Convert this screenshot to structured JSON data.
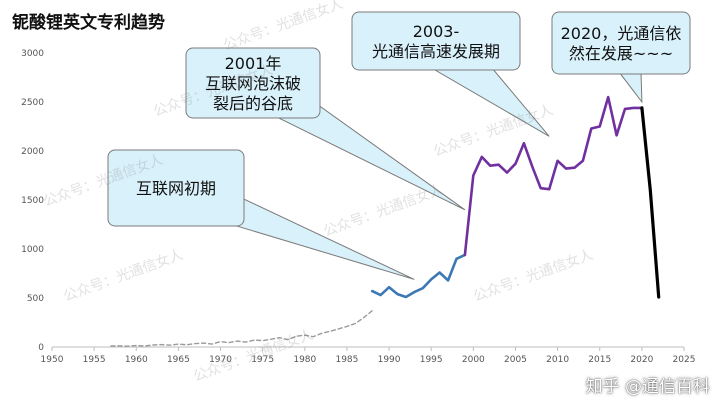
{
  "title": "铌酸锂英文专利趋势",
  "watermark": "公众号：光通信女人",
  "credit": "知乎 @通信百科",
  "chart_data": {
    "type": "line",
    "xlim": [
      1950,
      2025
    ],
    "ylim": [
      0,
      3000
    ],
    "x_ticks": [
      "1950",
      "1955",
      "1960",
      "1965",
      "1970",
      "1975",
      "1980",
      "1985",
      "1990",
      "1995",
      "2000",
      "2005",
      "2010",
      "2015",
      "2020",
      "2025"
    ],
    "y_ticks": [
      "0",
      "500",
      "1000",
      "1500",
      "2000",
      "2500",
      "3000"
    ],
    "grid": false,
    "legend": "none",
    "colors": {
      "early": "#9a9a9a",
      "internet": "#3c78b4",
      "optical": "#7030a0",
      "latest": "#000000",
      "callout_fill": "#d9f1fa",
      "callout_border": "#7a7a7a"
    },
    "series": [
      {
        "key": "early",
        "x": [
          1957,
          1958,
          1959,
          1960,
          1961,
          1962,
          1963,
          1964,
          1965,
          1966,
          1967,
          1968,
          1969,
          1970,
          1971,
          1972,
          1973,
          1974,
          1975,
          1976,
          1977,
          1978,
          1979,
          1980,
          1981,
          1982,
          1983,
          1984,
          1985,
          1986,
          1987,
          1988
        ],
        "y": [
          10,
          12,
          8,
          15,
          10,
          20,
          25,
          18,
          30,
          22,
          35,
          40,
          30,
          55,
          45,
          60,
          50,
          70,
          65,
          80,
          95,
          75,
          110,
          120,
          105,
          140,
          160,
          185,
          210,
          240,
          300,
          370
        ]
      },
      {
        "key": "internet",
        "x": [
          1988,
          1989,
          1990,
          1991,
          1992,
          1993,
          1994,
          1995,
          1996,
          1997,
          1998,
          1999
        ],
        "y": [
          570,
          530,
          610,
          540,
          510,
          560,
          600,
          690,
          760,
          680,
          900,
          940
        ]
      },
      {
        "key": "optical",
        "x": [
          1999,
          2000,
          2001,
          2002,
          2003,
          2004,
          2005,
          2006,
          2007,
          2008,
          2009,
          2010,
          2011,
          2012,
          2013,
          2014,
          2015,
          2016,
          2017,
          2018,
          2019,
          2020
        ],
        "y": [
          940,
          1750,
          1940,
          1850,
          1860,
          1780,
          1870,
          2080,
          1840,
          1620,
          1610,
          1900,
          1820,
          1830,
          1900,
          2230,
          2250,
          2550,
          2160,
          2430,
          2440,
          2440
        ]
      },
      {
        "key": "latest",
        "x": [
          2020,
          2021,
          2022
        ],
        "y": [
          2440,
          1600,
          510
        ]
      }
    ],
    "annotations": [
      {
        "key": "early-internet",
        "text": [
          "互联网初期"
        ],
        "target": [
          1993,
          690
        ]
      },
      {
        "key": "post-bubble",
        "text": [
          "2001年",
          "互联网泡沫破",
          "裂后的谷底"
        ],
        "target": [
          1999,
          1400
        ]
      },
      {
        "key": "optical-boom",
        "text": [
          "2003-",
          "光通信高速发展期"
        ],
        "target": [
          2009,
          2150
        ]
      },
      {
        "key": "still-growing",
        "text": [
          "2020，光通信依",
          "然在发展~~~"
        ],
        "target": [
          2020,
          2500
        ]
      }
    ]
  }
}
